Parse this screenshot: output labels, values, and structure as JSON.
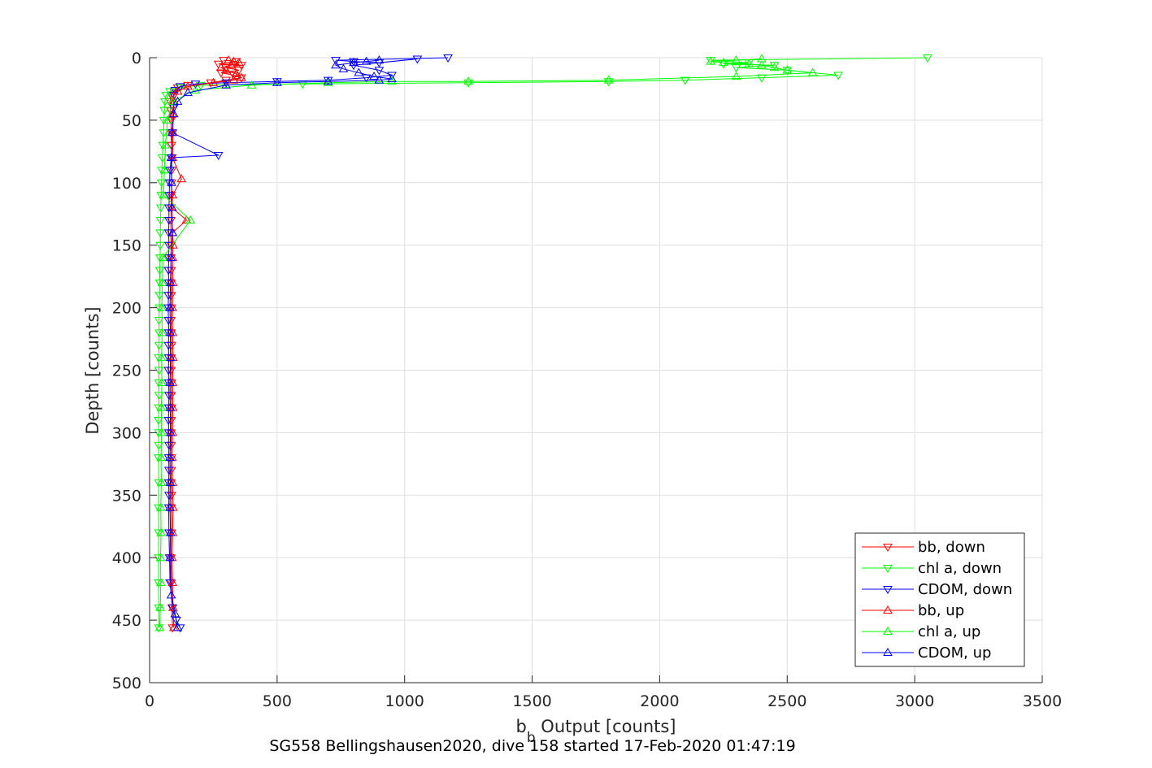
{
  "chart_data": {
    "type": "line",
    "xlabel": {
      "main": "b",
      "sub": "b",
      "rest": " Output [counts]"
    },
    "ylabel": "Depth [counts]",
    "caption": "SG558 Bellingshausen2020, dive 158 started 17-Feb-2020 01:47:19",
    "xlim": [
      0,
      3500
    ],
    "ylim": [
      0,
      500
    ],
    "y_reversed": true,
    "grid": true,
    "x_ticks": [
      "0",
      "500",
      "1000",
      "1500",
      "2000",
      "2500",
      "3000",
      "3500"
    ],
    "y_ticks": [
      "0",
      "50",
      "100",
      "150",
      "200",
      "250",
      "300",
      "350",
      "400",
      "450",
      "500"
    ],
    "legend_position": "bottom-right",
    "series": [
      {
        "name": "bb, down",
        "color": "#ff0000",
        "marker": "triangle-down",
        "x": [
          290,
          340,
          270,
          360,
          300,
          350,
          280,
          330,
          360,
          300,
          240,
          150,
          110,
          95,
          85,
          80,
          82,
          85,
          84,
          86,
          88,
          87,
          86,
          85,
          84,
          84,
          83,
          84,
          84,
          85,
          84,
          85,
          86,
          84,
          85,
          86,
          85,
          84,
          86,
          85,
          86,
          85,
          84,
          85,
          86,
          85,
          84,
          86,
          85,
          86,
          84,
          85,
          88,
          90
        ],
        "y": [
          2,
          3,
          5,
          6,
          8,
          10,
          12,
          14,
          16,
          18,
          20,
          22,
          24,
          27,
          30,
          35,
          42,
          50,
          60,
          70,
          80,
          90,
          100,
          110,
          120,
          130,
          140,
          150,
          160,
          170,
          180,
          190,
          200,
          210,
          220,
          230,
          240,
          250,
          260,
          270,
          280,
          290,
          300,
          310,
          320,
          330,
          340,
          350,
          360,
          380,
          400,
          420,
          440,
          456
        ]
      },
      {
        "name": "chl a, down",
        "color": "#00ff00",
        "marker": "triangle-down",
        "x": [
          3050,
          2200,
          2350,
          2250,
          2450,
          2300,
          2500,
          2700,
          2400,
          2100,
          1800,
          1250,
          600,
          200,
          120,
          80,
          65,
          60,
          58,
          56,
          55,
          52,
          50,
          48,
          47,
          45,
          44,
          43,
          42,
          42,
          41,
          40,
          40,
          39,
          38,
          37,
          38,
          37,
          36,
          37,
          36,
          37,
          36,
          35,
          36,
          36,
          35,
          36,
          35,
          36,
          35,
          35,
          36,
          36
        ],
        "y": [
          0,
          2,
          4,
          5,
          6,
          8,
          10,
          14,
          16,
          18,
          19,
          20,
          21,
          22,
          24,
          27,
          30,
          35,
          42,
          50,
          60,
          70,
          80,
          90,
          100,
          110,
          120,
          130,
          140,
          150,
          160,
          170,
          180,
          190,
          200,
          210,
          220,
          230,
          240,
          250,
          260,
          270,
          280,
          290,
          300,
          310,
          320,
          340,
          360,
          380,
          400,
          420,
          440,
          456
        ]
      },
      {
        "name": "CDOM, down",
        "color": "#0000ff",
        "marker": "triangle-down",
        "x": [
          1170,
          730,
          800,
          900,
          1050,
          800,
          900,
          950,
          850,
          700,
          500,
          300,
          180,
          120,
          100,
          95,
          95,
          90,
          270,
          85,
          80,
          78,
          77,
          76,
          76,
          75,
          76,
          75,
          74,
          75,
          74,
          73,
          74,
          75,
          74,
          75,
          74,
          75,
          76,
          75,
          74,
          75,
          76,
          75,
          76,
          75,
          76,
          75,
          76,
          78,
          80,
          90,
          105,
          120
        ],
        "y": [
          0,
          2,
          3,
          4,
          1,
          6,
          10,
          14,
          16,
          18,
          19,
          20,
          21,
          23,
          26,
          30,
          40,
          60,
          78,
          80,
          90,
          100,
          110,
          120,
          130,
          140,
          150,
          160,
          170,
          180,
          190,
          200,
          210,
          220,
          230,
          240,
          250,
          260,
          270,
          280,
          290,
          300,
          310,
          320,
          330,
          340,
          350,
          360,
          380,
          400,
          420,
          440,
          450,
          456
        ]
      },
      {
        "name": "bb, up",
        "color": "#ff0000",
        "marker": "triangle-up",
        "x": [
          95,
          92,
          90,
          88,
          90,
          92,
          90,
          88,
          90,
          91,
          90,
          92,
          90,
          89,
          91,
          90,
          92,
          90,
          145,
          88,
          90,
          125,
          90,
          92,
          90,
          95,
          110,
          150,
          250,
          330,
          360,
          340,
          300,
          280,
          320,
          350,
          330,
          310
        ],
        "y": [
          456,
          440,
          420,
          400,
          380,
          360,
          340,
          320,
          300,
          280,
          260,
          240,
          220,
          200,
          180,
          160,
          150,
          140,
          130,
          120,
          110,
          97,
          80,
          60,
          45,
          35,
          27,
          23,
          20,
          18,
          16,
          13,
          10,
          8,
          6,
          4,
          3,
          2
        ]
      },
      {
        "name": "chl a, up",
        "color": "#00ff00",
        "marker": "triangle-up",
        "x": [
          40,
          42,
          44,
          43,
          45,
          44,
          46,
          45,
          47,
          46,
          48,
          47,
          49,
          48,
          50,
          52,
          160,
          55,
          58,
          62,
          70,
          90,
          180,
          400,
          700,
          950,
          1250,
          1800,
          2300,
          2600,
          2500,
          2450,
          2400,
          2350,
          2250,
          2200,
          2300,
          2400
        ],
        "y": [
          456,
          440,
          420,
          400,
          380,
          360,
          340,
          320,
          300,
          280,
          260,
          240,
          220,
          200,
          180,
          160,
          130,
          110,
          90,
          70,
          50,
          35,
          26,
          22,
          20,
          19,
          19,
          18,
          15,
          12,
          10,
          8,
          6,
          5,
          4,
          3,
          2,
          1
        ]
      },
      {
        "name": "CDOM, up",
        "color": "#0000ff",
        "marker": "triangle-up",
        "x": [
          110,
          100,
          85,
          80,
          82,
          80,
          81,
          80,
          82,
          81,
          80,
          82,
          81,
          80,
          82,
          84,
          90,
          88,
          86,
          85,
          88,
          95,
          110,
          150,
          300,
          500,
          700,
          900,
          950,
          880,
          820,
          760,
          730,
          800,
          850,
          900
        ],
        "y": [
          456,
          445,
          430,
          400,
          380,
          360,
          340,
          320,
          300,
          280,
          260,
          240,
          220,
          200,
          180,
          160,
          140,
          120,
          100,
          80,
          60,
          45,
          35,
          28,
          22,
          20,
          19,
          18,
          17,
          15,
          12,
          9,
          6,
          4,
          3,
          2
        ]
      }
    ]
  }
}
